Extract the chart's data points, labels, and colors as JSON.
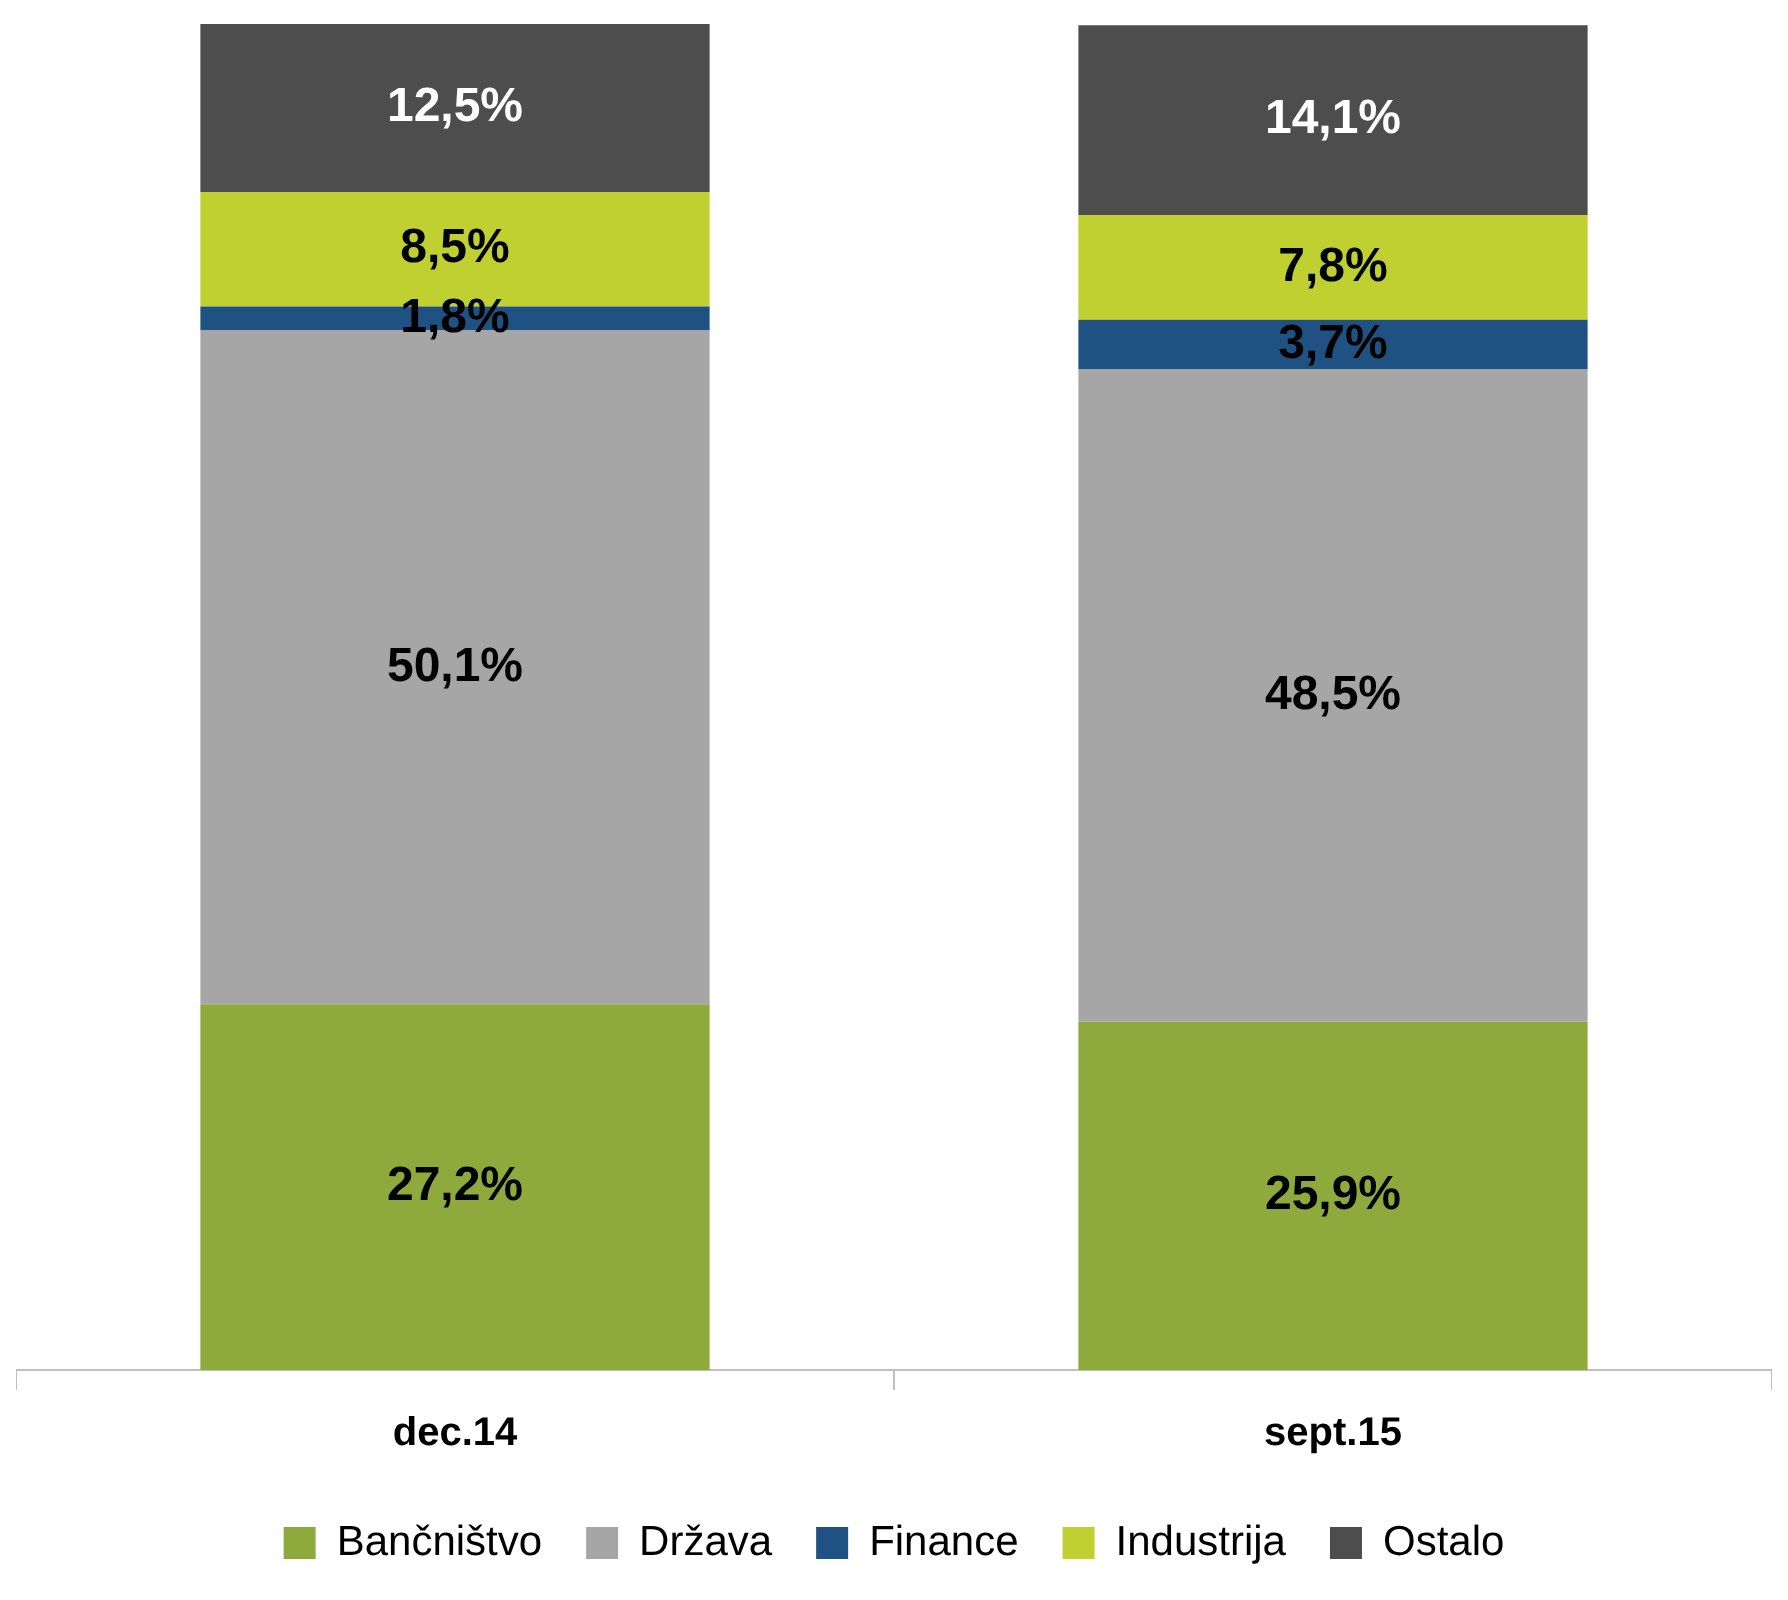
{
  "chart_data": {
    "type": "bar",
    "stacked": true,
    "categories": [
      "dec.14",
      "sept.15"
    ],
    "series": [
      {
        "name": "Bančništvo",
        "color": "#8faa3c",
        "values": [
          27.2,
          25.9
        ],
        "value_labels": [
          "27,2%",
          "25,9%"
        ]
      },
      {
        "name": "Država",
        "color": "#a6a6a6",
        "values": [
          50.1,
          48.5
        ],
        "value_labels": [
          "50,1%",
          "48,5%"
        ]
      },
      {
        "name": "Finance",
        "color": "#1f5283",
        "values": [
          1.8,
          3.7
        ],
        "value_labels": [
          "1,8%",
          "3,7%"
        ]
      },
      {
        "name": "Industrija",
        "color": "#bfd030",
        "values": [
          8.5,
          7.8
        ],
        "value_labels": [
          "8,5%",
          "7,8%"
        ]
      },
      {
        "name": "Ostalo",
        "color": "#4d4d4d",
        "values": [
          12.5,
          14.1
        ],
        "value_labels": [
          "12,5%",
          "14,1%"
        ]
      }
    ],
    "legend": "bottom",
    "grid": false
  }
}
